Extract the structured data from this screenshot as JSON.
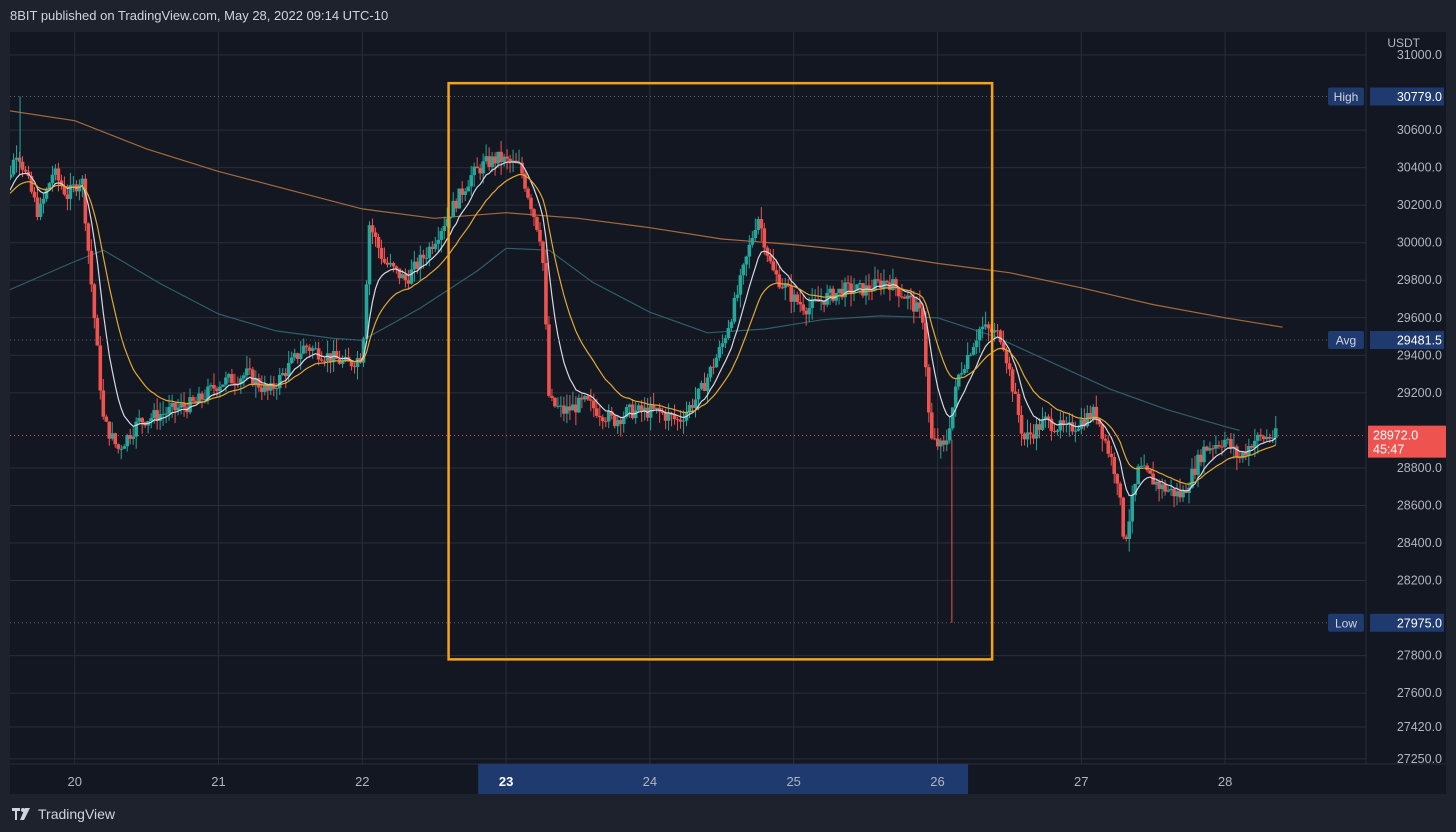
{
  "header": {
    "title": "8BIT published on TradingView.com, May 28, 2022 09:14 UTC-10"
  },
  "footer": {
    "brand": "TradingView"
  },
  "colors": {
    "background": "#131722",
    "grid": "#2a2e39",
    "up": "#26a69a",
    "down": "#ef5350",
    "box": "#f7a21b",
    "ema_long": "#a56a3c",
    "vwap": "#2d5f68",
    "ema_fast": "#d7d9e0",
    "ema_slow": "#e0a935",
    "axis_text": "#b2b5be",
    "label_bg": "#1e3a6e"
  },
  "chart_data": {
    "type": "candlestick",
    "symbol_currency": "USDT",
    "x_axis": {
      "ticks": [
        "20",
        "21",
        "22",
        "23",
        "24",
        "25",
        "26",
        "27",
        "28"
      ],
      "highlighted_tick": "23"
    },
    "y_axis": {
      "range": [
        27180,
        31080
      ],
      "ticks": [
        31000,
        30600,
        30400,
        30200,
        30000,
        29800,
        29600,
        29400,
        29200,
        28800,
        28600,
        28400,
        28200,
        27800,
        27600,
        27420,
        27250
      ],
      "tick_labels": [
        "31000.0",
        "30600.0",
        "30400.0",
        "30200.0",
        "30000.0",
        "29800.0",
        "29600.0",
        "29400.0",
        "29200.0",
        "28800.0",
        "28600.0",
        "28400.0",
        "28200.0",
        "27800.0",
        "27600.0",
        "27420.0",
        "27250.0"
      ]
    },
    "price_labels": [
      {
        "name": "High",
        "value": 30779.0,
        "text": "30779.0"
      },
      {
        "name": "Avg",
        "value": 29481.5,
        "text": "29481.5"
      },
      {
        "name": "Low",
        "value": 27975.0,
        "text": "27975.0"
      }
    ],
    "last_price": {
      "value": 28972.0,
      "text": "28972.0",
      "countdown": "45:47"
    },
    "highlight_box": {
      "x_from": 22.6,
      "x_to": 26.38,
      "y_from": 27780,
      "y_to": 30850
    },
    "candles_ohlc_keypoints": [
      [
        19.5,
        30250
      ],
      [
        19.6,
        30500
      ],
      [
        19.75,
        30150
      ],
      [
        19.85,
        30380
      ],
      [
        19.95,
        30250
      ],
      [
        20.05,
        30350
      ],
      [
        20.2,
        29050
      ],
      [
        20.3,
        28900
      ],
      [
        20.45,
        29050
      ],
      [
        20.65,
        29100
      ],
      [
        20.85,
        29150
      ],
      [
        21.0,
        29250
      ],
      [
        21.2,
        29300
      ],
      [
        21.35,
        29200
      ],
      [
        21.5,
        29350
      ],
      [
        21.6,
        29450
      ],
      [
        21.75,
        29400
      ],
      [
        21.9,
        29350
      ],
      [
        22.0,
        29400
      ],
      [
        22.05,
        30100
      ],
      [
        22.15,
        29900
      ],
      [
        22.3,
        29800
      ],
      [
        22.45,
        29950
      ],
      [
        22.6,
        30150
      ],
      [
        22.75,
        30350
      ],
      [
        22.85,
        30420
      ],
      [
        22.95,
        30450
      ],
      [
        23.1,
        30400
      ],
      [
        23.25,
        30000
      ],
      [
        23.3,
        29150
      ],
      [
        23.4,
        29100
      ],
      [
        23.55,
        29150
      ],
      [
        23.75,
        29050
      ],
      [
        23.85,
        29100
      ],
      [
        24.05,
        29100
      ],
      [
        24.2,
        29050
      ],
      [
        24.35,
        29200
      ],
      [
        24.5,
        29450
      ],
      [
        24.6,
        29700
      ],
      [
        24.75,
        30150
      ],
      [
        24.85,
        29850
      ],
      [
        25.0,
        29700
      ],
      [
        25.1,
        29650
      ],
      [
        25.2,
        29700
      ],
      [
        25.35,
        29750
      ],
      [
        25.5,
        29750
      ],
      [
        25.65,
        29800
      ],
      [
        25.8,
        29700
      ],
      [
        25.9,
        29600
      ],
      [
        25.95,
        28950
      ],
      [
        26.05,
        28900
      ],
      [
        26.15,
        29300
      ],
      [
        26.3,
        29550
      ],
      [
        26.45,
        29500
      ],
      [
        26.6,
        28950
      ],
      [
        26.75,
        29050
      ],
      [
        26.9,
        29000
      ],
      [
        27.1,
        29100
      ],
      [
        27.25,
        28750
      ],
      [
        27.3,
        28400
      ],
      [
        27.4,
        28800
      ],
      [
        27.55,
        28700
      ],
      [
        27.7,
        28650
      ],
      [
        27.85,
        28900
      ],
      [
        28.0,
        28950
      ],
      [
        28.1,
        28850
      ],
      [
        28.2,
        28950
      ],
      [
        28.35,
        28972
      ]
    ],
    "series": [
      {
        "name": "",
        "kind": "ema_long",
        "x": [
          19.4,
          20.0,
          20.5,
          21.0,
          21.5,
          22.0,
          22.5,
          23.0,
          23.5,
          24.0,
          24.5,
          25.0,
          25.5,
          26.0,
          26.5,
          27.0,
          27.5,
          28.0,
          28.4
        ],
        "y": [
          30720,
          30650,
          30500,
          30380,
          30280,
          30180,
          30130,
          30160,
          30130,
          30080,
          30020,
          29990,
          29950,
          29890,
          29840,
          29760,
          29670,
          29600,
          29550
        ]
      },
      {
        "name": "",
        "kind": "vwap",
        "x": [
          19.4,
          20.0,
          20.2,
          20.6,
          21.0,
          21.4,
          21.8,
          22.0,
          22.4,
          22.8,
          23.0,
          23.3,
          23.6,
          24.0,
          24.4,
          24.8,
          25.2,
          25.6,
          26.0,
          26.4,
          26.8,
          27.2,
          27.6,
          28.0,
          28.1
        ],
        "y": [
          29700,
          29900,
          29960,
          29780,
          29620,
          29530,
          29490,
          29480,
          29650,
          29850,
          29970,
          29960,
          29790,
          29630,
          29520,
          29540,
          29590,
          29610,
          29600,
          29500,
          29360,
          29220,
          29110,
          29020,
          29000
        ]
      }
    ]
  }
}
